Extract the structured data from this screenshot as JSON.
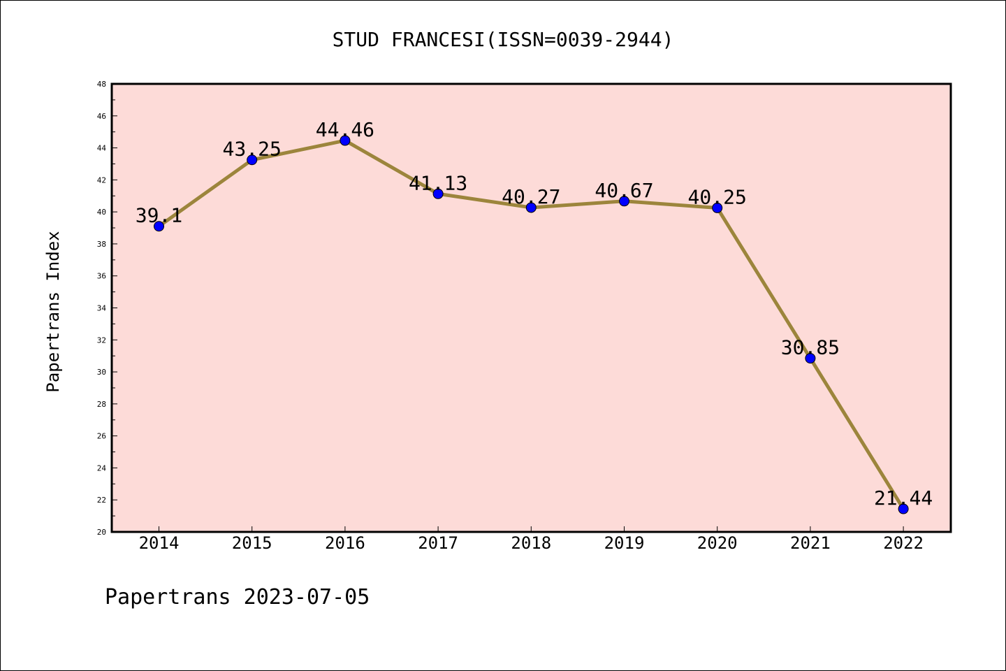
{
  "chart_data": {
    "type": "line",
    "title": "STUD FRANCESI(ISSN=0039-2944)",
    "xlabel": "",
    "ylabel": "Papertrans Index",
    "footer": "Papertrans 2023-07-05",
    "categories": [
      "2014",
      "2015",
      "2016",
      "2017",
      "2018",
      "2019",
      "2020",
      "2021",
      "2022"
    ],
    "values": [
      39.1,
      43.25,
      44.46,
      41.13,
      40.27,
      40.67,
      40.25,
      30.85,
      21.44
    ],
    "value_labels": [
      "39.1",
      "43.25",
      "44.46",
      "41.13",
      "40.27",
      "40.67",
      "40.25",
      "30.85",
      "21.44"
    ],
    "ylim": [
      20,
      48
    ],
    "yticks": [
      "20",
      "22",
      "24",
      "26",
      "28",
      "30",
      "32",
      "34",
      "36",
      "38",
      "40",
      "42",
      "44",
      "46",
      "48"
    ],
    "grid": false,
    "colors": {
      "plot_background": "#fddbd8",
      "line": "#9c853c",
      "marker": "#0000ff"
    }
  }
}
